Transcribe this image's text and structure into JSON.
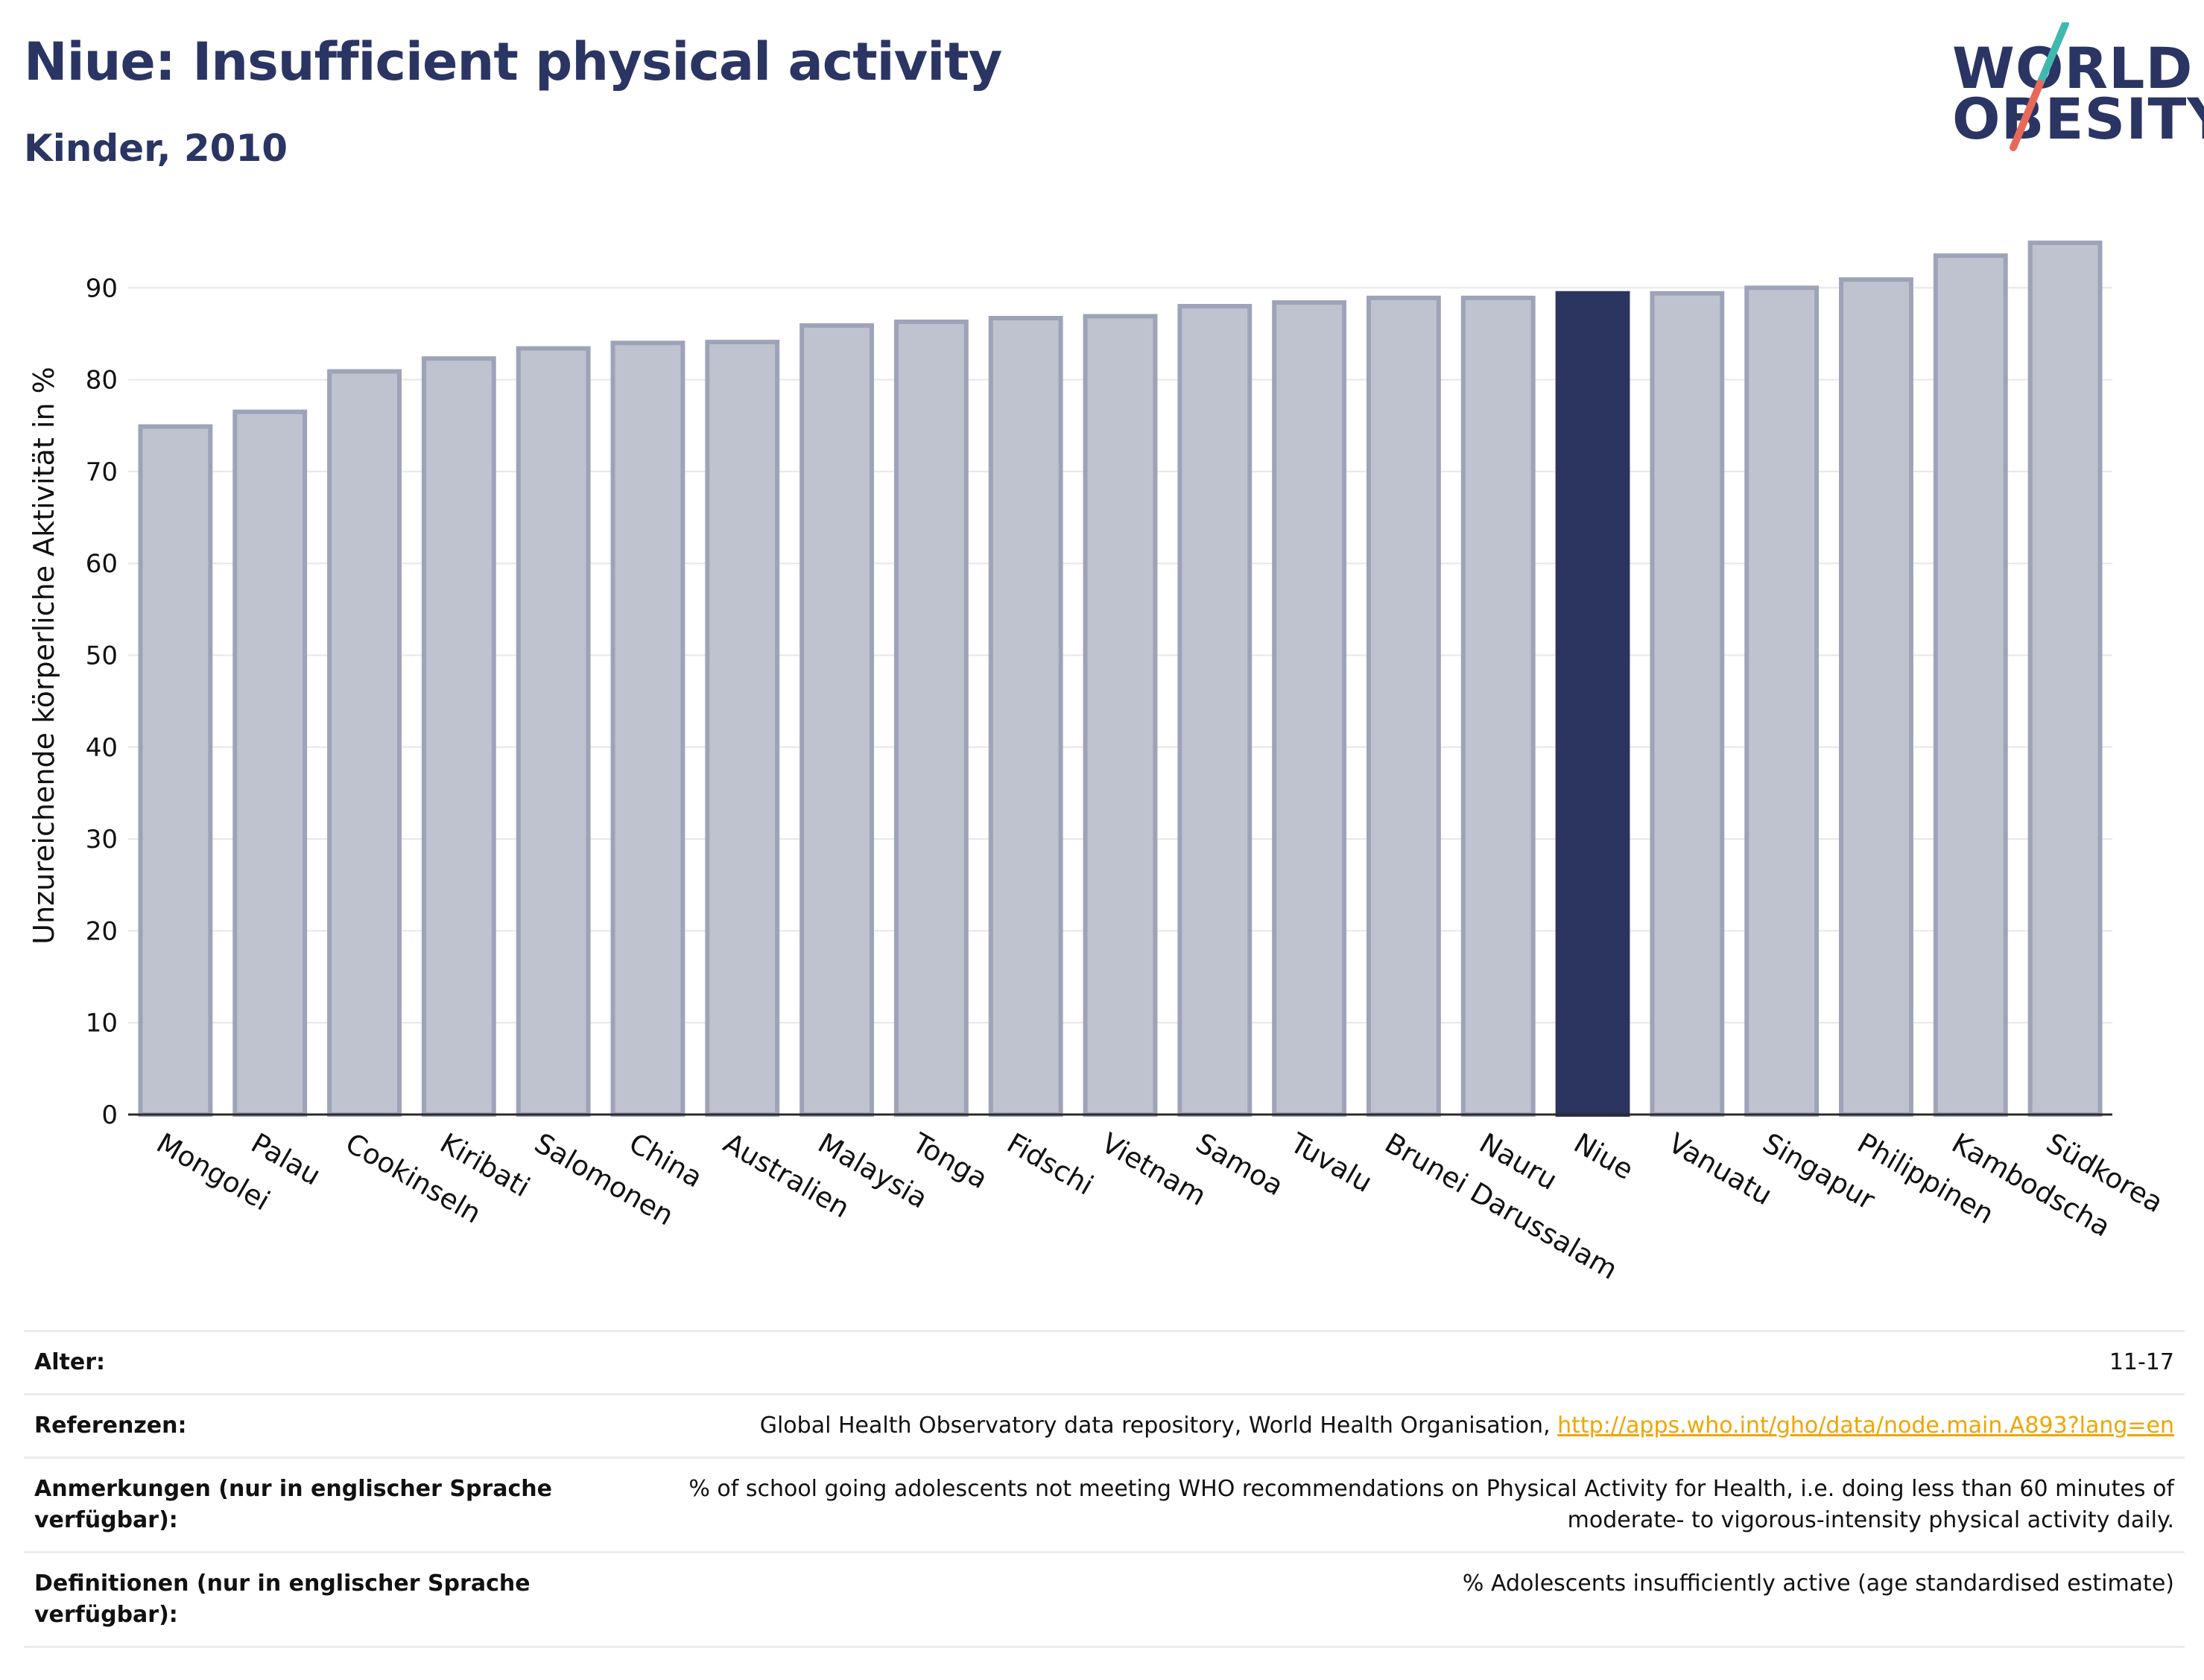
{
  "header": {
    "title": "Niue: Insufficient physical activity",
    "subtitle": "Kinder, 2010"
  },
  "logo": {
    "line1": "WORLD",
    "line2": "OBESITY",
    "color_text": "#2b3564",
    "color_slash_top": "#3fb8b0",
    "color_slash_bottom": "#e8695a"
  },
  "chart_data": {
    "type": "bar",
    "categories": [
      "Mongolei",
      "Palau",
      "Cookinseln",
      "Kiribati",
      "Salomonen",
      "China",
      "Australien",
      "Malaysia",
      "Tonga",
      "Fidschi",
      "Vietnam",
      "Samoa",
      "Tuvalu",
      "Brunei Darussalam",
      "Nauru",
      "Niue",
      "Vanuatu",
      "Singapur",
      "Philippinen",
      "Kambodscha",
      "Südkorea"
    ],
    "values": [
      74.9,
      76.5,
      80.9,
      82.3,
      83.4,
      84.0,
      84.1,
      85.9,
      86.3,
      86.7,
      86.9,
      88.0,
      88.4,
      88.9,
      88.9,
      89.4,
      89.4,
      90.0,
      90.9,
      93.5,
      94.9
    ],
    "highlight": "Niue",
    "title": "",
    "xlabel": "",
    "ylabel": "Unzureichende körperliche Aktivität in %",
    "ylim": [
      0,
      97
    ],
    "yticks": [
      0,
      10,
      20,
      30,
      40,
      50,
      60,
      70,
      80,
      90
    ],
    "grid": true,
    "colors": {
      "bar_fill": "#bfc2cf",
      "bar_stroke": "#9ea3b8",
      "highlight_fill": "#2b3560",
      "axis": "#2b2b2b",
      "grid": "#e6e7ec"
    }
  },
  "info": {
    "rows": [
      {
        "label": "Alter:",
        "value": "11-17"
      },
      {
        "label": "Referenzen:",
        "value": "Global Health Observatory data repository, World Health Organisation, ",
        "link": "http://apps.who.int/gho/data/node.main.A893?lang=en"
      },
      {
        "label": "Anmerkungen (nur in englischer Sprache verfügbar):",
        "value": "% of school going adolescents not meeting WHO recommendations on Physical Activity for Health, i.e. doing less than 60 minutes of moderate- to vigorous-intensity physical activity daily."
      },
      {
        "label": "Definitionen (nur in englischer Sprache verfügbar):",
        "value": "% Adolescents insufficiently active (age standardised estimate)"
      }
    ]
  }
}
